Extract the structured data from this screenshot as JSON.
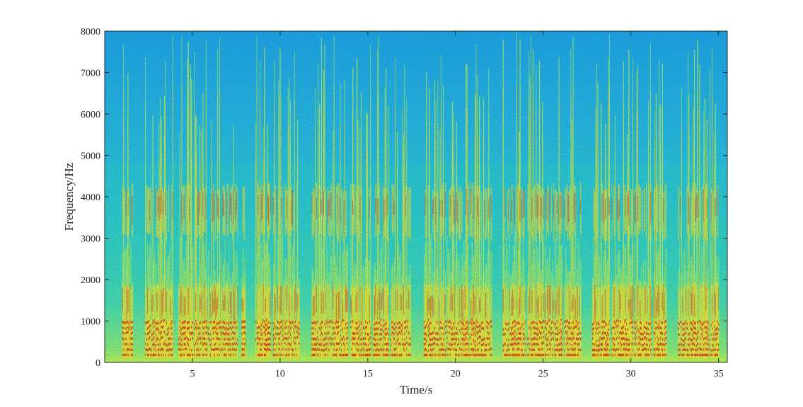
{
  "chart_data": {
    "type": "heatmap",
    "subtype": "spectrogram",
    "title": "",
    "xlabel": "Time/s",
    "ylabel": "Frequency/Hz",
    "xlim": [
      0,
      35.5
    ],
    "ylim": [
      0,
      8000
    ],
    "xticks": [
      5,
      10,
      15,
      20,
      25,
      30,
      35
    ],
    "yticks": [
      0,
      1000,
      2000,
      3000,
      4000,
      5000,
      6000,
      7000,
      8000
    ],
    "colormap": "jet",
    "colors": {
      "low": "#1fa0e0",
      "mid_low": "#2ed0c0",
      "mid": "#b8f050",
      "high": "#ffe020",
      "peak": "#d81010"
    },
    "grid": false,
    "legend": "none",
    "speech_segments_s": [
      [
        1.0,
        1.6
      ],
      [
        2.3,
        3.9
      ],
      [
        4.2,
        5.0
      ],
      [
        5.1,
        5.9
      ],
      [
        6.0,
        7.6
      ],
      [
        7.8,
        8.0
      ],
      [
        8.6,
        9.5
      ],
      [
        9.6,
        11.1
      ],
      [
        11.8,
        12.9
      ],
      [
        13.0,
        13.9
      ],
      [
        14.0,
        15.2
      ],
      [
        15.3,
        16.2
      ],
      [
        16.3,
        17.4
      ],
      [
        18.2,
        19.4
      ],
      [
        19.5,
        20.7
      ],
      [
        20.8,
        22.0
      ],
      [
        22.7,
        24.0
      ],
      [
        24.1,
        25.0
      ],
      [
        25.1,
        26.1
      ],
      [
        26.2,
        27.1
      ],
      [
        27.8,
        28.8
      ],
      [
        28.9,
        30.1
      ],
      [
        30.2,
        31.2
      ],
      [
        31.3,
        32.0
      ],
      [
        32.7,
        33.8
      ],
      [
        33.9,
        34.4
      ],
      [
        34.5,
        35.0
      ]
    ]
  }
}
